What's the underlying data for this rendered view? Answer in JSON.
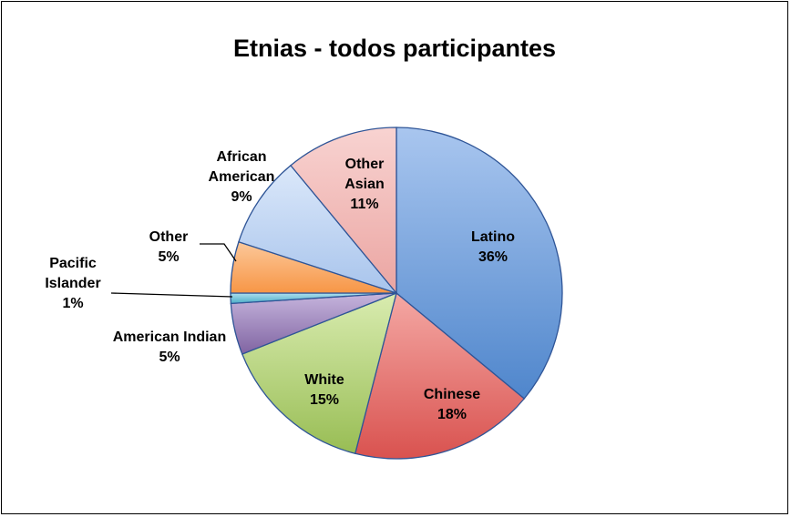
{
  "chart_data": {
    "type": "pie",
    "title": "Etnias - todos participantes",
    "slices": [
      {
        "name": "Latino",
        "value": 36,
        "label": [
          "Latino",
          "36%"
        ],
        "color": "#4f86cc",
        "light": "#a9c6ef"
      },
      {
        "name": "Chinese",
        "value": 18,
        "label": [
          "Chinese",
          "18%"
        ],
        "color": "#d9524f",
        "light": "#f4a8a4"
      },
      {
        "name": "White",
        "value": 15,
        "label": [
          "White",
          "15%"
        ],
        "color": "#98bd54",
        "light": "#d9ecb0"
      },
      {
        "name": "American Indian",
        "value": 5,
        "label": [
          "American Indian",
          "5%"
        ],
        "color": "#8064a2",
        "light": "#c6b5dd"
      },
      {
        "name": "Pacific Islander",
        "value": 1,
        "label": [
          "Pacific",
          "Islander",
          "1%"
        ],
        "color": "#4bacc6",
        "light": "#aee0ef"
      },
      {
        "name": "Other",
        "value": 5,
        "label": [
          "Other",
          "5%"
        ],
        "color": "#f79646",
        "light": "#fcc89a"
      },
      {
        "name": "African American",
        "value": 9,
        "label": [
          "African",
          "American",
          "9%"
        ],
        "color": "#a8c4ec",
        "light": "#dbe8fa"
      },
      {
        "name": "Other Asian",
        "value": 11,
        "label": [
          "Other",
          "Asian",
          "11%"
        ],
        "color": "#eba5a2",
        "light": "#f8d3d1"
      }
    ],
    "start_angle": "12 o'clock",
    "direction": "clockwise",
    "legend": "none"
  }
}
